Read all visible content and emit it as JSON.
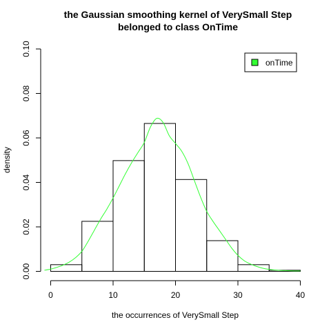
{
  "chart_data": {
    "type": "histogram",
    "title_line1": "the Gaussian smoothing kernel of VerySmall Step",
    "title_line2": "belonged to class OnTime",
    "xlabel": "the occurrences of VerySmall Step",
    "ylabel": "density",
    "xlim": [
      0,
      40
    ],
    "ylim": [
      0,
      0.1
    ],
    "x_ticks": [
      0,
      10,
      20,
      30,
      40
    ],
    "x_tick_labels": [
      "0",
      "10",
      "20",
      "30",
      "40"
    ],
    "y_ticks": [
      0.0,
      0.02,
      0.04,
      0.06,
      0.08,
      0.1
    ],
    "y_tick_labels": [
      "0.00",
      "0.02",
      "0.04",
      "0.06",
      "0.08",
      "0.10"
    ],
    "bins": [
      {
        "start": 0,
        "end": 5,
        "density": 0.003
      },
      {
        "start": 5,
        "end": 10,
        "density": 0.0225
      },
      {
        "start": 10,
        "end": 15,
        "density": 0.0498
      },
      {
        "start": 15,
        "end": 20,
        "density": 0.0665
      },
      {
        "start": 20,
        "end": 25,
        "density": 0.0413
      },
      {
        "start": 25,
        "end": 30,
        "density": 0.0138
      },
      {
        "start": 30,
        "end": 35,
        "density": 0.003
      },
      {
        "start": 35,
        "end": 40,
        "density": 0.0005
      }
    ],
    "density_curve": {
      "color": "#33ff33",
      "x": [
        -1,
        0,
        1,
        2,
        3,
        4,
        5,
        6,
        7,
        8,
        9,
        10,
        11,
        12,
        13,
        14,
        15,
        16,
        17,
        18,
        19,
        20,
        21,
        22,
        23,
        24,
        25,
        26,
        27,
        28,
        29,
        30,
        31,
        32,
        33,
        34,
        35,
        36,
        37,
        38,
        39,
        40
      ],
      "y": [
        0.0005,
        0.001,
        0.0018,
        0.0028,
        0.0042,
        0.0062,
        0.009,
        0.0135,
        0.0185,
        0.0235,
        0.028,
        0.033,
        0.0385,
        0.044,
        0.049,
        0.0535,
        0.058,
        0.065,
        0.0688,
        0.067,
        0.061,
        0.0575,
        0.054,
        0.0485,
        0.041,
        0.0335,
        0.027,
        0.0225,
        0.0185,
        0.0145,
        0.0105,
        0.0072,
        0.0048,
        0.0033,
        0.0022,
        0.0014,
        0.0009,
        0.0006,
        0.0004,
        0.0003,
        0.0002,
        0.0002
      ]
    },
    "legend": {
      "position": "top-right",
      "label": "onTime",
      "color": "#33ff33"
    },
    "grid": false
  }
}
